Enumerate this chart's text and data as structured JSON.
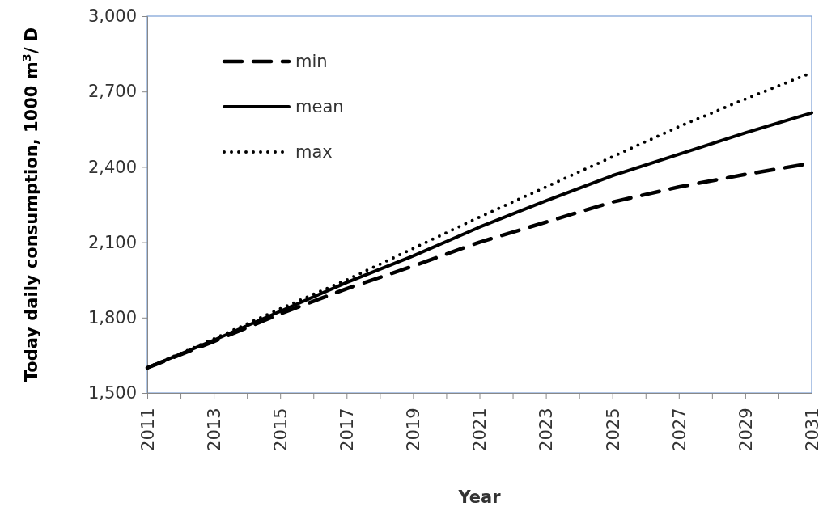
{
  "chart_data": {
    "type": "line",
    "xlabel": "Year",
    "ylabel": "Today daily consumption, 1000 m$^{3}$/ D",
    "x": [
      2011,
      2013,
      2015,
      2017,
      2019,
      2021,
      2023,
      2025,
      2027,
      2029,
      2031
    ],
    "series": [
      {
        "name": "min",
        "color": "#000000",
        "line_style": "dashed",
        "values": [
          1600,
          1705,
          1815,
          1915,
          2005,
          2100,
          2180,
          2260,
          2320,
          2370,
          2415
        ]
      },
      {
        "name": "mean",
        "color": "#000000",
        "line_style": "solid",
        "values": [
          1600,
          1710,
          1825,
          1940,
          2045,
          2160,
          2265,
          2365,
          2450,
          2535,
          2615
        ]
      },
      {
        "name": "max",
        "color": "#000000",
        "line_style": "dotted",
        "values": [
          1600,
          1715,
          1835,
          1950,
          2075,
          2200,
          2320,
          2440,
          2560,
          2670,
          2775
        ]
      }
    ],
    "xlim": [
      2011,
      2031
    ],
    "xticks": [
      2011,
      {
        "value": 2012,
        "label": null
      },
      2013,
      {
        "value": 2014,
        "label": null
      },
      2015,
      {
        "value": 2016,
        "label": null
      },
      2017,
      {
        "value": 2018,
        "label": null
      },
      2019,
      {
        "value": 2020,
        "label": null
      },
      2021,
      {
        "value": 2022,
        "label": null
      },
      2023,
      {
        "value": 2024,
        "label": null
      },
      2025,
      {
        "value": 2026,
        "label": null
      },
      2027,
      {
        "value": 2028,
        "label": null
      },
      2029,
      {
        "value": 2030,
        "label": null
      },
      2031
    ],
    "ylim": [
      1500,
      3000
    ],
    "yticks": [
      {
        "value": 1500,
        "label": "1,500"
      },
      {
        "value": 1800,
        "label": "1,800"
      },
      {
        "value": 2100,
        "label": "2,100"
      },
      {
        "value": 2400,
        "label": "2,400"
      },
      {
        "value": 2700,
        "label": "2,700"
      },
      {
        "value": 3000,
        "label": "3,000"
      }
    ],
    "grid": false,
    "legend": "top left",
    "marker": "none"
  }
}
